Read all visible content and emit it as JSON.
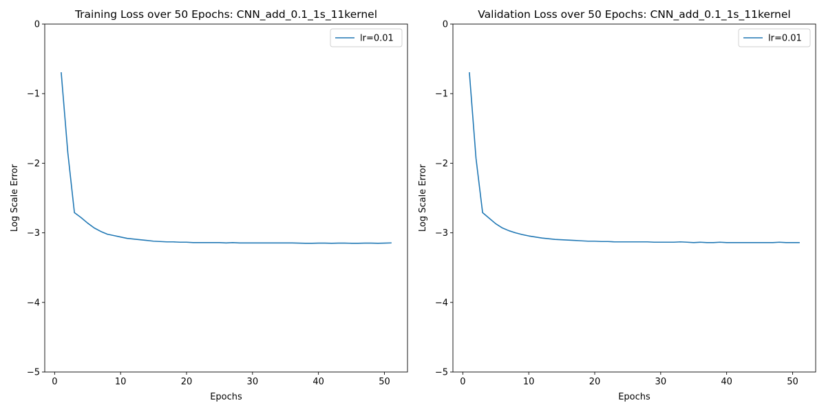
{
  "chart_data": [
    {
      "type": "line",
      "title": "Training Loss over 50 Epochs: CNN_add_0.1_1s_11kernel",
      "xlabel": "Epochs",
      "ylabel": "Log Scale Error",
      "xlim": [
        -1.5,
        53.5
      ],
      "ylim": [
        -5,
        0
      ],
      "xticks": [
        0,
        10,
        20,
        30,
        40,
        50
      ],
      "yticks": [
        0,
        -1,
        -2,
        -3,
        -4,
        -5
      ],
      "grid": false,
      "legend_position": "top-right",
      "series": [
        {
          "name": "lr=0.01",
          "color": "#1f77b4",
          "x": [
            1,
            2,
            3,
            4,
            5,
            6,
            7,
            8,
            9,
            10,
            11,
            12,
            13,
            14,
            15,
            16,
            17,
            18,
            19,
            20,
            21,
            22,
            23,
            24,
            25,
            26,
            27,
            28,
            29,
            30,
            31,
            32,
            33,
            34,
            35,
            36,
            37,
            38,
            39,
            40,
            41,
            42,
            43,
            44,
            45,
            46,
            47,
            48,
            49,
            50,
            51
          ],
          "y": [
            -0.7,
            -1.85,
            -2.71,
            -2.78,
            -2.86,
            -2.93,
            -2.98,
            -3.02,
            -3.04,
            -3.06,
            -3.08,
            -3.09,
            -3.1,
            -3.11,
            -3.12,
            -3.125,
            -3.13,
            -3.13,
            -3.135,
            -3.135,
            -3.14,
            -3.14,
            -3.14,
            -3.14,
            -3.14,
            -3.145,
            -3.14,
            -3.145,
            -3.145,
            -3.145,
            -3.145,
            -3.145,
            -3.145,
            -3.145,
            -3.145,
            -3.145,
            -3.148,
            -3.15,
            -3.15,
            -3.148,
            -3.148,
            -3.15,
            -3.148,
            -3.148,
            -3.15,
            -3.15,
            -3.148,
            -3.148,
            -3.15,
            -3.148,
            -3.145
          ]
        }
      ]
    },
    {
      "type": "line",
      "title": "Validation Loss over 50 Epochs: CNN_add_0.1_1s_11kernel",
      "xlabel": "Epochs",
      "ylabel": "Log Scale Error",
      "xlim": [
        -1.5,
        53.5
      ],
      "ylim": [
        -5,
        0
      ],
      "xticks": [
        0,
        10,
        20,
        30,
        40,
        50
      ],
      "yticks": [
        0,
        -1,
        -2,
        -3,
        -4,
        -5
      ],
      "grid": false,
      "legend_position": "top-right",
      "series": [
        {
          "name": "lr=0.01",
          "color": "#1f77b4",
          "x": [
            1,
            2,
            3,
            4,
            5,
            6,
            7,
            8,
            9,
            10,
            11,
            12,
            13,
            14,
            15,
            16,
            17,
            18,
            19,
            20,
            21,
            22,
            23,
            24,
            25,
            26,
            27,
            28,
            29,
            30,
            31,
            32,
            33,
            34,
            35,
            36,
            37,
            38,
            39,
            40,
            41,
            42,
            43,
            44,
            45,
            46,
            47,
            48,
            49,
            50,
            51
          ],
          "y": [
            -0.7,
            -1.93,
            -2.71,
            -2.79,
            -2.87,
            -2.93,
            -2.97,
            -3.0,
            -3.025,
            -3.045,
            -3.06,
            -3.075,
            -3.085,
            -3.095,
            -3.1,
            -3.105,
            -3.11,
            -3.115,
            -3.12,
            -3.12,
            -3.125,
            -3.125,
            -3.13,
            -3.13,
            -3.13,
            -3.13,
            -3.13,
            -3.13,
            -3.135,
            -3.135,
            -3.135,
            -3.135,
            -3.13,
            -3.135,
            -3.14,
            -3.135,
            -3.14,
            -3.14,
            -3.135,
            -3.14,
            -3.14,
            -3.14,
            -3.14,
            -3.14,
            -3.14,
            -3.14,
            -3.14,
            -3.135,
            -3.14,
            -3.14,
            -3.14
          ]
        }
      ]
    }
  ]
}
